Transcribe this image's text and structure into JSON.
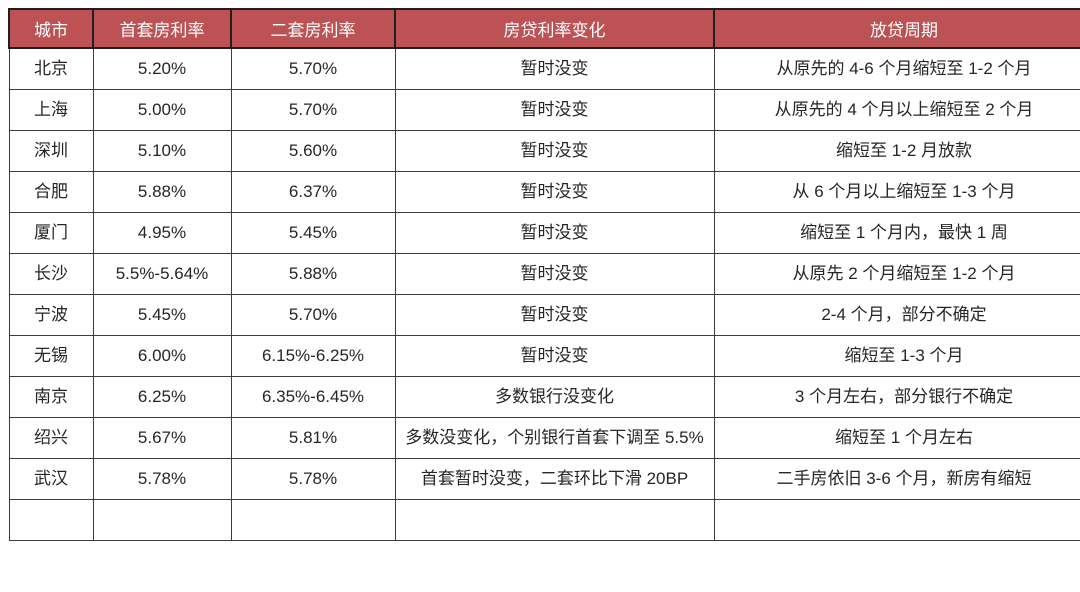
{
  "table": {
    "headers": [
      "城市",
      "首套房利率",
      "二套房利率",
      "房贷利率变化",
      "放贷周期"
    ],
    "rows": [
      {
        "city": "北京",
        "first_rate": "5.20%",
        "second_rate": "5.70%",
        "change": "暂时没变",
        "cycle": "从原先的 4-6 个月缩短至 1-2 个月"
      },
      {
        "city": "上海",
        "first_rate": "5.00%",
        "second_rate": "5.70%",
        "change": "暂时没变",
        "cycle": "从原先的 4 个月以上缩短至 2 个月"
      },
      {
        "city": "深圳",
        "first_rate": "5.10%",
        "second_rate": "5.60%",
        "change": "暂时没变",
        "cycle": "缩短至 1-2 月放款"
      },
      {
        "city": "合肥",
        "first_rate": "5.88%",
        "second_rate": "6.37%",
        "change": "暂时没变",
        "cycle": "从 6 个月以上缩短至 1-3 个月"
      },
      {
        "city": "厦门",
        "first_rate": "4.95%",
        "second_rate": "5.45%",
        "change": "暂时没变",
        "cycle": "缩短至 1 个月内，最快 1 周"
      },
      {
        "city": "长沙",
        "first_rate": "5.5%-5.64%",
        "second_rate": "5.88%",
        "change": "暂时没变",
        "cycle": "从原先 2 个月缩短至 1-2 个月"
      },
      {
        "city": "宁波",
        "first_rate": "5.45%",
        "second_rate": "5.70%",
        "change": "暂时没变",
        "cycle": "2-4 个月，部分不确定"
      },
      {
        "city": "无锡",
        "first_rate": "6.00%",
        "second_rate": "6.15%-6.25%",
        "change": "暂时没变",
        "cycle": "缩短至 1-3 个月"
      },
      {
        "city": "南京",
        "first_rate": "6.25%",
        "second_rate": "6.35%-6.45%",
        "change": "多数银行没变化",
        "cycle": "3 个月左右，部分银行不确定"
      },
      {
        "city": "绍兴",
        "first_rate": "5.67%",
        "second_rate": "5.81%",
        "change": "多数没变化，个别银行首套下调至 5.5%",
        "cycle": "缩短至 1 个月左右"
      },
      {
        "city": "武汉",
        "first_rate": "5.78%",
        "second_rate": "5.78%",
        "change": "首套暂时没变，二套环比下滑 20BP",
        "cycle": "二手房依旧 3-6 个月，新房有缩短"
      }
    ],
    "colors": {
      "header_bg": "#BC5254",
      "header_text": "#FFFFFF",
      "body_text": "#262626",
      "header_border": "#1F1F1F",
      "body_border": "#3D3D3D"
    }
  }
}
